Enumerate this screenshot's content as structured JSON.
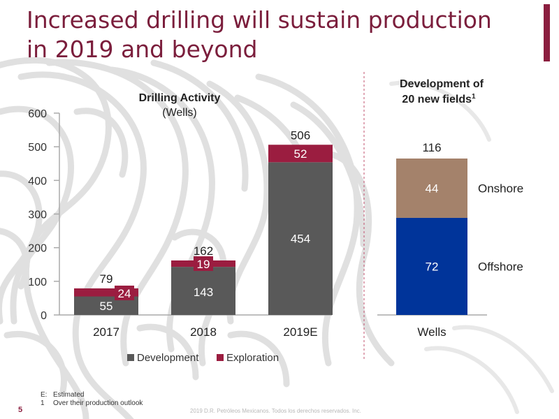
{
  "slide": {
    "title_line1": "Increased drilling will sustain production",
    "title_line2": "in 2019 and beyond",
    "page_number": "5",
    "copyright": "2019 D.R. Petróleos Mexicanos. Todos los derechos reservados. Inc.",
    "footnotes": [
      {
        "key": "E:",
        "text": "Estimated"
      },
      {
        "key": "1",
        "text": "Over their production outlook"
      }
    ]
  },
  "colors": {
    "title": "#7b1e3c",
    "development": "#595959",
    "exploration": "#9b1d40",
    "onshore": "#a4826b",
    "offshore": "#00349a",
    "pattern": "#d6d6d6"
  },
  "chart_data": [
    {
      "type": "bar",
      "stacked": true,
      "title": "Drilling Activity",
      "subtitle": "(Wells)",
      "categories": [
        "2017",
        "2018",
        "2019E"
      ],
      "series": [
        {
          "name": "Development",
          "values": [
            55,
            143,
            454
          ]
        },
        {
          "name": "Exploration",
          "values": [
            24,
            19,
            52
          ]
        }
      ],
      "totals": [
        79,
        162,
        506
      ],
      "yticks": [
        0,
        100,
        200,
        300,
        400,
        500,
        600
      ],
      "ylim": [
        0,
        600
      ],
      "legend": "bottom",
      "grid": false
    },
    {
      "type": "bar",
      "stacked": true,
      "title_line1": "Development of",
      "title_line2": "20 new fields",
      "title_sup": "1",
      "categories": [
        "Wells"
      ],
      "series": [
        {
          "name": "Offshore",
          "values": [
            72
          ]
        },
        {
          "name": "Onshore",
          "values": [
            44
          ]
        }
      ],
      "totals": [
        116
      ],
      "ylim": [
        0,
        600
      ],
      "legend": "right-of-bars",
      "grid": false
    }
  ]
}
